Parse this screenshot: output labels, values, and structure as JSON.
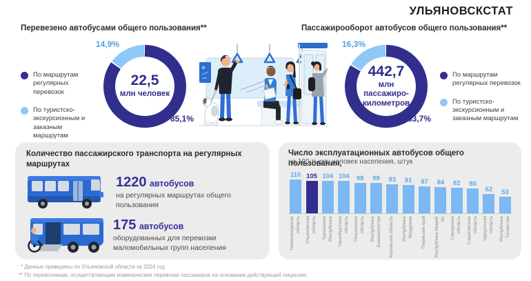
{
  "brand": "УЛЬЯНОВСКСТАТ",
  "donut_left": {
    "title": "Перевезено автобусами общего пользования**",
    "center_value": "22,5",
    "center_unit": "млн человек",
    "main_pct_label": "85,1%",
    "secondary_pct_label": "14,9%"
  },
  "donut_right": {
    "title": "Пассажирооборот автобусов общего пользования**",
    "center_value": "442,7",
    "center_unit": "млн пассажиро-километров",
    "main_pct_label": "83,7%",
    "secondary_pct_label": "16,3%"
  },
  "legend": {
    "regular": "По маршрутам регулярных перевозок",
    "tourist": "По туристско-экскурсионным и заказным маршрутам"
  },
  "fleet": {
    "title": "Количество пассажирского транспорта на регулярных маршрутах",
    "items": [
      {
        "value": "1220",
        "unit": "автобусов",
        "caption": "на регулярных маршрутах общего пользования"
      },
      {
        "value": "175",
        "unit": "автобусов",
        "caption": "оборудованных для перевозки маломобильных групп населения"
      }
    ]
  },
  "bar_panel": {
    "title": "Число эксплуатационных автобусов общего пользования,",
    "subtitle": "на 100 тысяч человек населения,  штук"
  },
  "footnotes": [
    "* Данные приведены по Ульяновской области за 2024 год",
    "** По  перевозчикам, осуществляющим коммерческие перевозки пассажиров на основании действующей лицензии"
  ],
  "chart_data": [
    {
      "type": "pie",
      "title": "Перевезено автобусами общего пользования**",
      "center_label": "22,5 млн человек",
      "slices": [
        {
          "label": "По маршрутам регулярных перевозок",
          "value": 85.1,
          "color": "#312e8e"
        },
        {
          "label": "По туристско-экскурсионным и заказным маршрутам",
          "value": 14.9,
          "color": "#8ec8f7"
        }
      ],
      "unit": "percent"
    },
    {
      "type": "pie",
      "title": "Пассажирооборот автобусов общего пользования**",
      "center_label": "442,7 млн пассажиро-километров",
      "slices": [
        {
          "label": "По маршрутам регулярных перевозок",
          "value": 83.7,
          "color": "#312e8e"
        },
        {
          "label": "По туристско-экскурсионным и заказным маршрутам",
          "value": 16.3,
          "color": "#8ec8f7"
        }
      ],
      "unit": "percent"
    },
    {
      "type": "bar",
      "title": "Число эксплуатационных автобусов общего пользования, на 100 тысяч человек населения, штук",
      "categories": [
        "Нижегородская область",
        "Ульяновская область",
        "Чувашская Республика",
        "Оренбургская область",
        "Пензенская область",
        "Республика Башкортостан",
        "Кировская область",
        "Республика Мордовия",
        "Пермский край",
        "Республика Марий Эл",
        "Самарская область",
        "Саратовская область",
        "Удмуртская область",
        "Республика Татарстан"
      ],
      "values": [
        110,
        105,
        104,
        104,
        98,
        98,
        93,
        91,
        87,
        84,
        82,
        80,
        62,
        53
      ],
      "highlight_index": 1,
      "bar_color": "#7cb8f4",
      "highlight_color": "#312e8e",
      "value_label_color": "#5ba7ee",
      "ylim": [
        0,
        110
      ],
      "grid": false,
      "value_labels": true,
      "legend_position": "none"
    }
  ]
}
